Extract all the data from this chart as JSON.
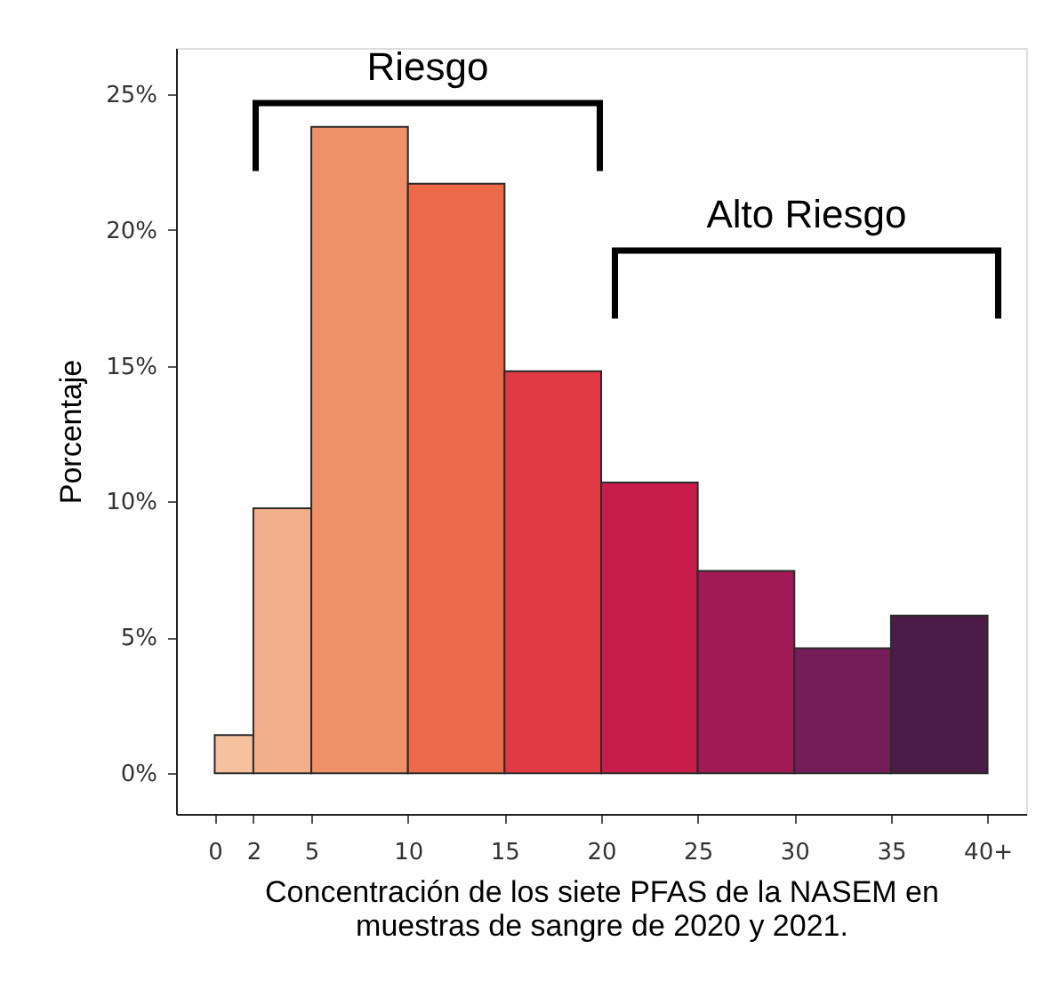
{
  "chart_data": {
    "type": "histogram",
    "xlabel": "Concentración de los siete PFAS de la NASEM en\nmuestras de sangre de 2020 y 2021.",
    "ylabel": "Porcentaje",
    "bins": [
      0,
      2,
      5,
      10,
      15,
      20,
      25,
      30,
      35,
      40
    ],
    "values": [
      1.4,
      9.75,
      23.8,
      21.7,
      14.8,
      10.7,
      7.45,
      4.6,
      5.8
    ],
    "colors": [
      "#f5c19f",
      "#f3ae8a",
      "#f09068",
      "#ec6a4a",
      "#e23a44",
      "#c81d4a",
      "#a11a56",
      "#751d58",
      "#4a1c46"
    ],
    "xlim": [
      -2,
      42
    ],
    "xticks": [
      0,
      2,
      5,
      10,
      15,
      20,
      25,
      30,
      35,
      {
        "value": 40,
        "label": "40+"
      }
    ],
    "ylim": [
      -1.5,
      26.7
    ],
    "yticks": [
      {
        "value": 0,
        "label": "0%"
      },
      {
        "value": 5,
        "label": "5%"
      },
      {
        "value": 10,
        "label": "10%"
      },
      {
        "value": 15,
        "label": "15%"
      },
      {
        "value": 20,
        "label": "20%"
      },
      {
        "value": 25,
        "label": "25%"
      }
    ],
    "annotations": [
      "Riesgo",
      "Alto Riesgo"
    ],
    "grid": false
  }
}
